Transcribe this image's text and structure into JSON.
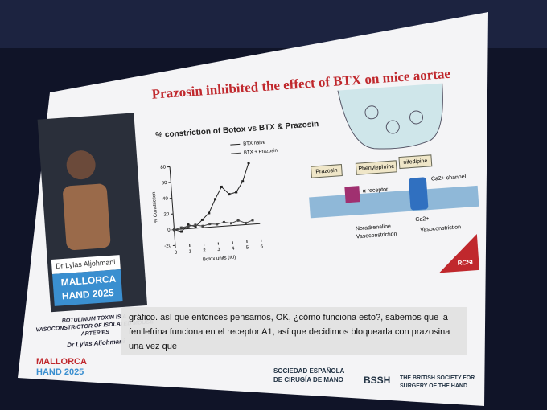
{
  "slide": {
    "title": "Prazosin inhibited the effect of BTX on mice aortae",
    "speaker": {
      "name": "Dr Lylas Aljohmani",
      "event_line1": "MALLORCA",
      "event_line2": "HAND 2025"
    },
    "caption": {
      "talk_lines": [
        "BOTULINUM TOXIN IS A",
        "VASOCONSTRICTOR OF ISOLATED MOUSE",
        "ARTERIES"
      ],
      "author": "Dr Lylas Aljohmani"
    },
    "diagram": {
      "prazosin": "Prazosin",
      "phenylephrine": "Phenylephrine",
      "nifedipine": "nifedipine",
      "alpha_receptor": "α receptor",
      "ca_channel": "Ca2+ channel",
      "ca_ion": "Ca2+",
      "noradrenaline": "Noradrenaline",
      "vasoconstriction_left": "Vasoconstriction",
      "vasoconstriction_right": "Vasoconstriction"
    },
    "logo": "RCSI",
    "subtitles": [
      "gráfico. así que entonces pensamos, OK, ¿cómo funciona esto?, sabemos que la",
      "fenilefrina funciona en el receptor A1, así que decidimos bloquearla con prazosina",
      "una vez que"
    ],
    "footer": {
      "event_line1": "MALLORCA",
      "event_line2": "HAND 2025",
      "society1_line1": "SOCIEDAD ESPAÑOLA",
      "society1_line2": "DE CIRUGÍA DE MANO",
      "society2_short": "BSSH",
      "society2_line1": "THE BRITISH SOCIETY FOR",
      "society2_line2": "SURGERY OF THE HAND"
    }
  },
  "chart_data": {
    "type": "line",
    "title": "% constriction of Botox vs BTX & Prazosin",
    "x_label": "Botox units (IU)",
    "y_label": "% Constriction",
    "x": [
      0,
      0.5,
      1,
      1.5,
      2,
      2.5,
      3,
      3.5,
      4,
      4.5,
      5,
      5.5
    ],
    "series": [
      {
        "name": "BTX naive",
        "color": "#222222",
        "values": [
          0,
          -3,
          5,
          2,
          10,
          18,
          35,
          50,
          40,
          42,
          55,
          78
        ]
      },
      {
        "name": "BTX + Prazosin",
        "color": "#444444",
        "values": [
          0,
          2,
          3,
          4,
          2,
          4,
          3,
          5,
          3,
          6,
          2,
          5
        ]
      }
    ],
    "xlim": [
      0,
      6
    ],
    "xticks": [
      0,
      1,
      2,
      3,
      4,
      5,
      6
    ],
    "ylim": [
      -20,
      80
    ],
    "yticks": [
      -20,
      0,
      20,
      40,
      60,
      80
    ]
  }
}
